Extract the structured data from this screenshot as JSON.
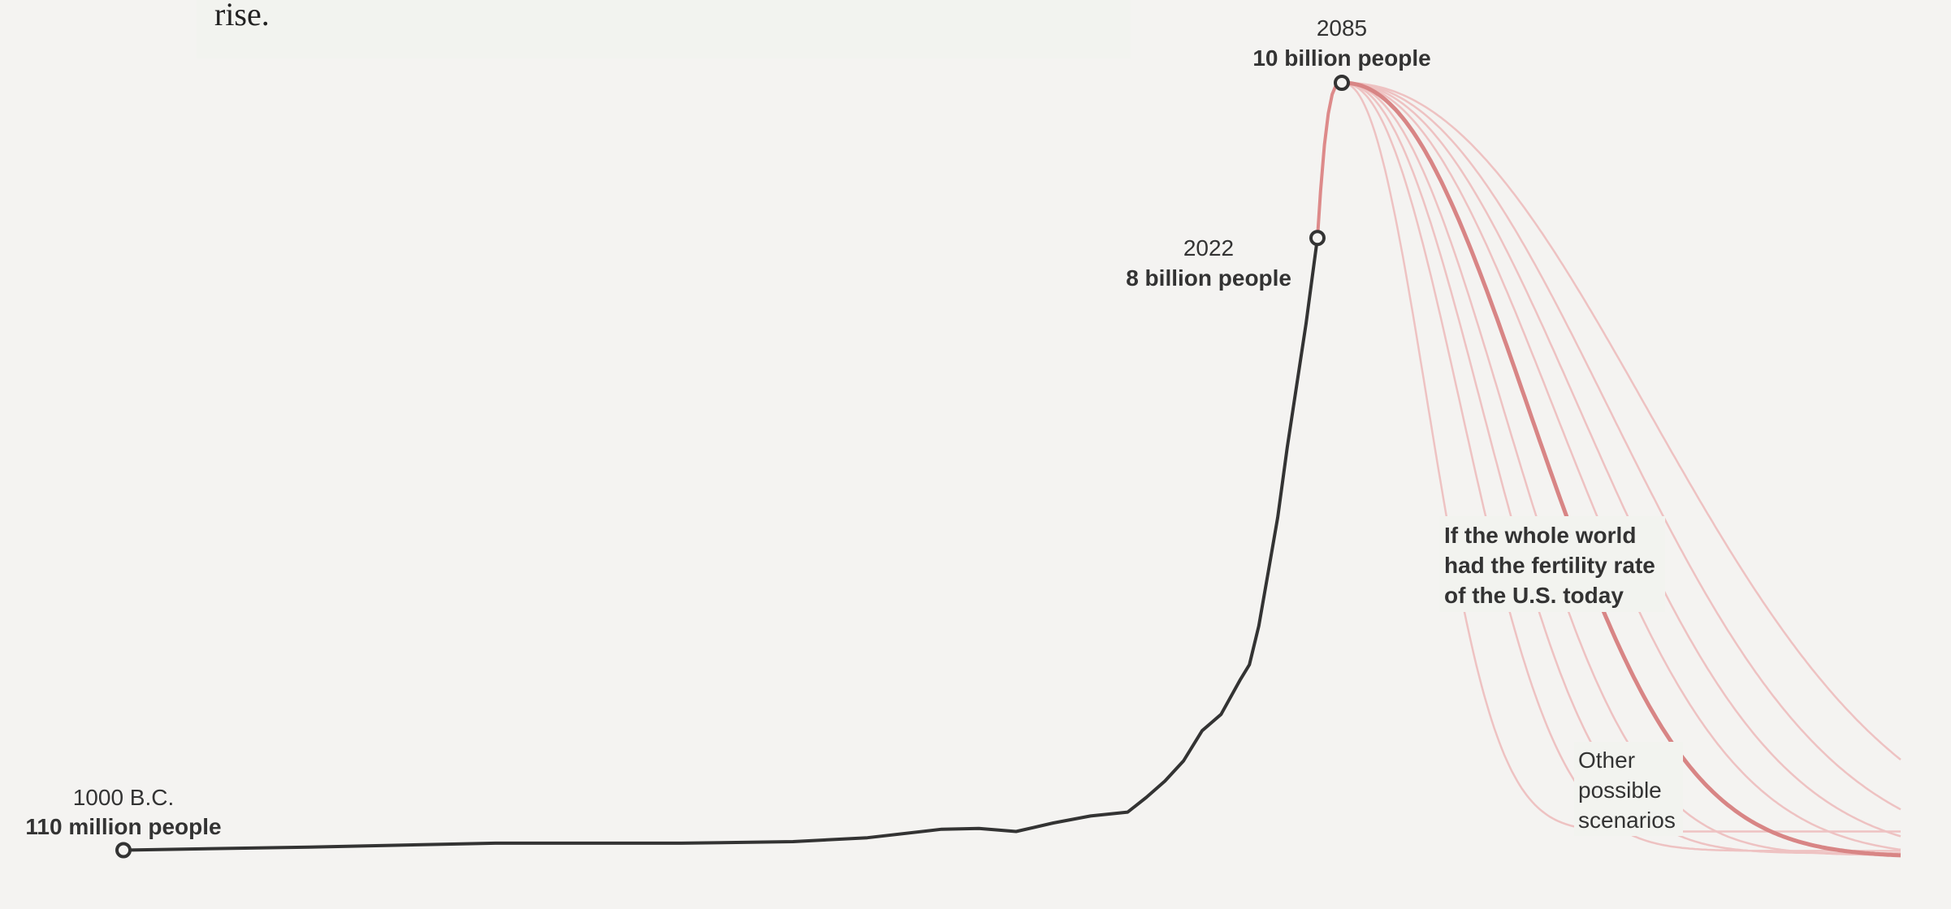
{
  "intro": {
    "text": "rise."
  },
  "chart_data": {
    "type": "line",
    "title": "",
    "xlabel": "",
    "ylabel": "",
    "colors": {
      "history": "#333333",
      "projection": "#dd8a8a",
      "us_scenario": "#d88585",
      "other_scenarios": "#eec2c2",
      "background": "#f4f3f1"
    },
    "annotations": {
      "start": {
        "year": "1000 B.C.",
        "population": "110 million people"
      },
      "today": {
        "year": "2022",
        "population": "8 billion people"
      },
      "peak": {
        "year": "2085",
        "population": "10 billion people"
      }
    },
    "notes": {
      "us_scenario": [
        "If the whole world",
        "had the fertility rate",
        "of the U.S. today"
      ],
      "other_scenarios": [
        "Other",
        "possible",
        "scenarios"
      ]
    },
    "series": [
      {
        "kind": "history",
        "points": [
          [
            -1000,
            0.11
          ],
          [
            -500,
            0.15
          ],
          [
            0,
            0.2
          ],
          [
            500,
            0.2
          ],
          [
            800,
            0.22
          ],
          [
            1000,
            0.27
          ],
          [
            1200,
            0.38
          ],
          [
            1300,
            0.39
          ],
          [
            1400,
            0.35
          ],
          [
            1500,
            0.46
          ],
          [
            1600,
            0.55
          ],
          [
            1700,
            0.6
          ],
          [
            1750,
            0.79
          ],
          [
            1800,
            1.0
          ],
          [
            1850,
            1.26
          ],
          [
            1900,
            1.65
          ],
          [
            1920,
            1.86
          ],
          [
            1940,
            2.3
          ],
          [
            1950,
            2.5
          ],
          [
            1960,
            3.0
          ],
          [
            1970,
            3.7
          ],
          [
            1980,
            4.4
          ],
          [
            1990,
            5.3
          ],
          [
            2000,
            6.1
          ],
          [
            2010,
            6.9
          ],
          [
            2022,
            8.0
          ]
        ]
      },
      {
        "kind": "projection",
        "points": [
          [
            2022,
            8.0
          ],
          [
            2030,
            8.6
          ],
          [
            2040,
            9.2
          ],
          [
            2050,
            9.6
          ],
          [
            2060,
            9.85
          ],
          [
            2070,
            9.97
          ],
          [
            2080,
            10.0
          ],
          [
            2085,
            10.0
          ]
        ]
      }
    ],
    "scenarios": {
      "start_year": 2085,
      "start_value": 10.0,
      "end_year": 2300,
      "decline": "gradual decline of world population after the 2085 peak, one curve per scenario",
      "us_today": {
        "name": "If the whole world had the fertility rate of the U.S. today",
        "decay": 0.44,
        "floor": 0.02
      },
      "others": [
        {
          "decay": 0.2,
          "floor": 0.35
        },
        {
          "decay": 0.28,
          "floor": 0.1
        },
        {
          "decay": 0.33,
          "floor": 0.07
        },
        {
          "decay": 0.38,
          "floor": 0.045
        },
        {
          "decay": 0.5,
          "floor": 0.015
        },
        {
          "decay": 0.56,
          "floor": 0.01
        },
        {
          "decay": 0.63,
          "floor": 0.005
        },
        {
          "decay": 0.72,
          "floor": 0.002
        }
      ]
    }
  }
}
